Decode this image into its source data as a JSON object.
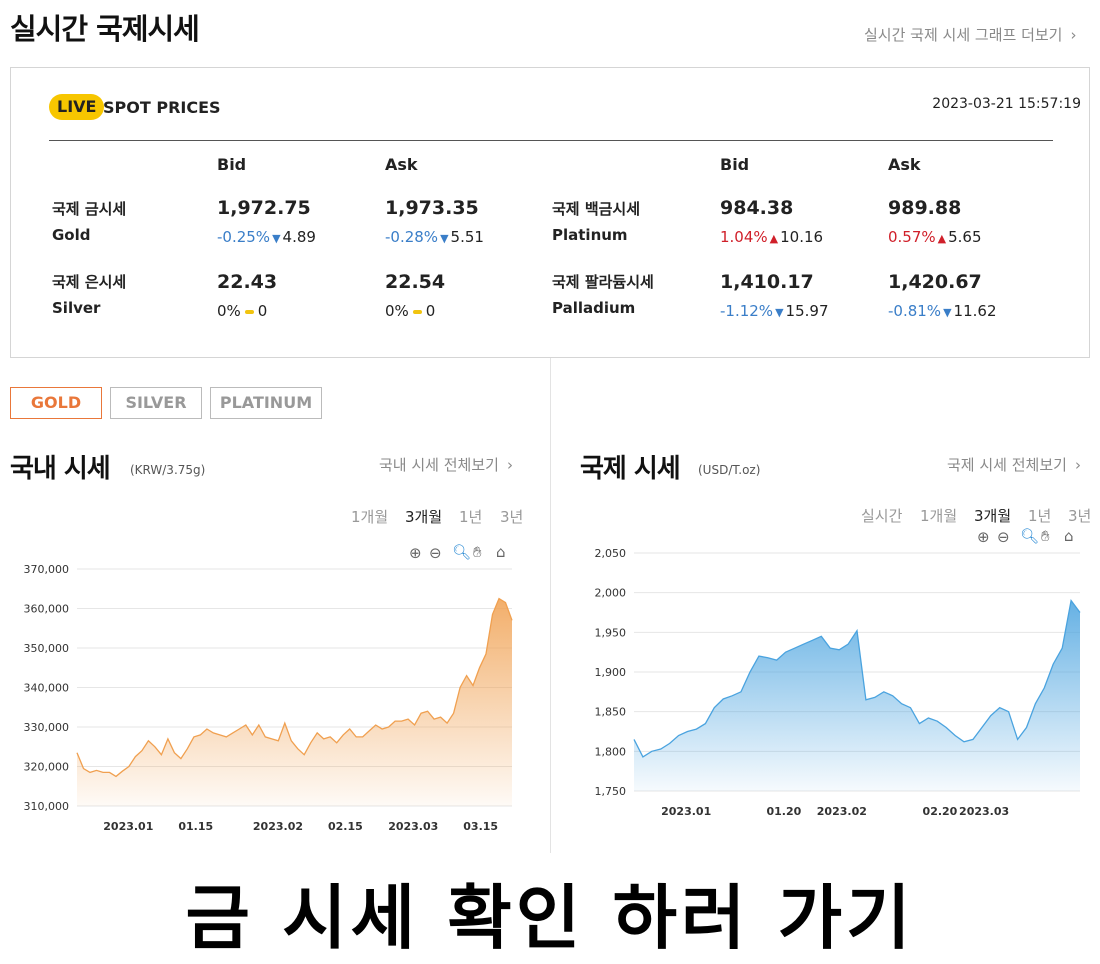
{
  "header": {
    "title": "실시간 국제시세",
    "graph_link": "실시간 국제 시세 그래프 더보기"
  },
  "spot": {
    "badge": "LIVE",
    "title": "SPOT PRICES",
    "timestamp": "2023-03-21 15:57:19",
    "col_bid": "Bid",
    "col_ask": "Ask",
    "gold": {
      "name_ko": "국제 금시세",
      "name_en": "Gold",
      "bid": "1,972.75",
      "bid_pct": "-0.25%",
      "bid_chg": "4.89",
      "ask": "1,973.35",
      "ask_pct": "-0.28%",
      "ask_chg": "5.51"
    },
    "silver": {
      "name_ko": "국제 은시세",
      "name_en": "Silver",
      "bid": "22.43",
      "bid_pct": "0%",
      "bid_chg": "0",
      "ask": "22.54",
      "ask_pct": "0%",
      "ask_chg": "0"
    },
    "platinum": {
      "name_ko": "국제 백금시세",
      "name_en": "Platinum",
      "bid": "984.38",
      "bid_pct": "1.04%",
      "bid_chg": "10.16",
      "ask": "989.88",
      "ask_pct": "0.57%",
      "ask_chg": "5.65"
    },
    "palladium": {
      "name_ko": "국제 팔라듐시세",
      "name_en": "Palladium",
      "bid": "1,410.17",
      "bid_pct": "-1.12%",
      "bid_chg": "15.97",
      "ask": "1,420.67",
      "ask_pct": "-0.81%",
      "ask_chg": "11.62"
    }
  },
  "tabs": {
    "gold": "GOLD",
    "silver": "SILVER",
    "platinum": "PLATINUM"
  },
  "domestic": {
    "title": "국내 시세",
    "unit": "(KRW/3.75g)",
    "more": "국내 시세 전체보기",
    "periods": [
      "1개월",
      "3개월",
      "1년",
      "3년"
    ],
    "active_period": "3개월"
  },
  "international": {
    "title": "국제 시세",
    "unit": "(USD/T.oz)",
    "more": "국제 시세 전체보기",
    "periods": [
      "실시간",
      "1개월",
      "3개월",
      "1년",
      "3년"
    ],
    "active_period": "3개월"
  },
  "toolbar_icons": [
    "zoom-in-icon",
    "zoom-out-icon",
    "magnifier-icon",
    "hand-pan-icon",
    "home-icon"
  ],
  "colors": {
    "accent": "#e9773a",
    "live": "#f7c600",
    "down": "#3a7ec8",
    "up": "#d0202a",
    "domestic_line": "#f0a050",
    "intl_line": "#4aa3df"
  },
  "cta": "금 시세 확인 하러 가기",
  "chart_data": [
    {
      "type": "area",
      "title": "국내 시세",
      "ylabel": "KRW/3.75g",
      "ylim": [
        310000,
        370000
      ],
      "yticks": [
        310000,
        320000,
        330000,
        340000,
        350000,
        360000,
        370000
      ],
      "ytick_labels": [
        "310,000",
        "320,000",
        "330,000",
        "340,000",
        "350,000",
        "360,000",
        "370,000"
      ],
      "xticks": [
        "2023.01",
        "01.15",
        "2023.02",
        "02.15",
        "2023.03",
        "03.15"
      ],
      "series": [
        {
          "values": [
            323500,
            319500,
            318500,
            319000,
            318500,
            318500,
            317500,
            318800,
            320000,
            322500,
            324000,
            326500,
            325000,
            323000,
            327000,
            323500,
            322000,
            324500,
            327500,
            328000,
            329500,
            328500,
            328000,
            327500,
            328500,
            329500,
            330500,
            328000,
            330500,
            327500,
            327000,
            326500,
            331000,
            326500,
            324500,
            323000,
            326000,
            328500,
            327000,
            327500,
            326000,
            328000,
            329500,
            327500,
            327500,
            329000,
            330500,
            329500,
            330000,
            331500,
            331500,
            332000,
            330500,
            333500,
            334000,
            332000,
            332500,
            331000,
            333500,
            340000,
            343000,
            340500,
            345000,
            348500,
            358500,
            362500,
            361500,
            357000
          ]
        }
      ]
    },
    {
      "type": "area",
      "title": "국제 시세",
      "ylabel": "USD/T.oz",
      "ylim": [
        1750,
        2050
      ],
      "yticks": [
        1750,
        1800,
        1850,
        1900,
        1950,
        2000,
        2050
      ],
      "ytick_labels": [
        "1,750",
        "1,800",
        "1,850",
        "1,900",
        "1,950",
        "2,000",
        "2,050"
      ],
      "xticks": [
        "2023.01",
        "01.20",
        "2023.02",
        "02.20",
        "2023.03"
      ],
      "series": [
        {
          "values": [
            1815,
            1793,
            1800,
            1803,
            1810,
            1820,
            1825,
            1828,
            1835,
            1855,
            1866,
            1870,
            1875,
            1900,
            1920,
            1918,
            1915,
            1925,
            1930,
            1935,
            1940,
            1945,
            1930,
            1928,
            1935,
            1952,
            1865,
            1868,
            1875,
            1870,
            1860,
            1855,
            1835,
            1842,
            1838,
            1830,
            1820,
            1812,
            1815,
            1830,
            1845,
            1855,
            1850,
            1815,
            1830,
            1860,
            1880,
            1910,
            1930,
            1990,
            1975
          ]
        }
      ]
    }
  ]
}
